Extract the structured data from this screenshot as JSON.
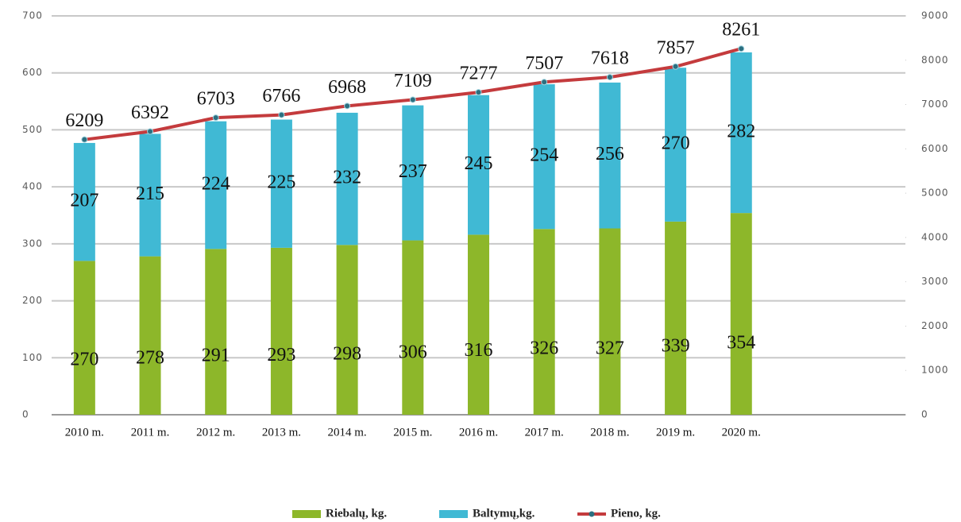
{
  "chart_data": {
    "type": "bar",
    "categories": [
      "2010 m.",
      "2011 m.",
      "2012 m.",
      "2013 m.",
      "2014 m.",
      "2015 m.",
      "2016 m.",
      "2017 m.",
      "2018 m.",
      "2019 m.",
      "2020 m."
    ],
    "series": [
      {
        "name": "Riebalų, kg.",
        "color": "#8db72a",
        "values": [
          270,
          278,
          291,
          293,
          298,
          306,
          316,
          326,
          327,
          339,
          354
        ]
      },
      {
        "name": "Baltymų,kg.",
        "color": "#40b9d4",
        "values": [
          207,
          215,
          224,
          225,
          232,
          237,
          245,
          254,
          256,
          270,
          282
        ]
      },
      {
        "name": "Pieno, kg.",
        "color": "#c43b3d",
        "type": "line",
        "axis": "y2",
        "values": [
          6209,
          6392,
          6703,
          6766,
          6968,
          7109,
          7277,
          7507,
          7618,
          7857,
          8261
        ]
      }
    ],
    "stacked": true,
    "ylim": [
      0,
      700
    ],
    "yticks": [
      0,
      100,
      200,
      300,
      400,
      500,
      600,
      700
    ],
    "y2lim": [
      0,
      9000
    ],
    "y2ticks": [
      0,
      1000,
      2000,
      3000,
      4000,
      5000,
      6000,
      7000,
      8000,
      9000
    ],
    "grid": true,
    "legend": "bottom"
  }
}
